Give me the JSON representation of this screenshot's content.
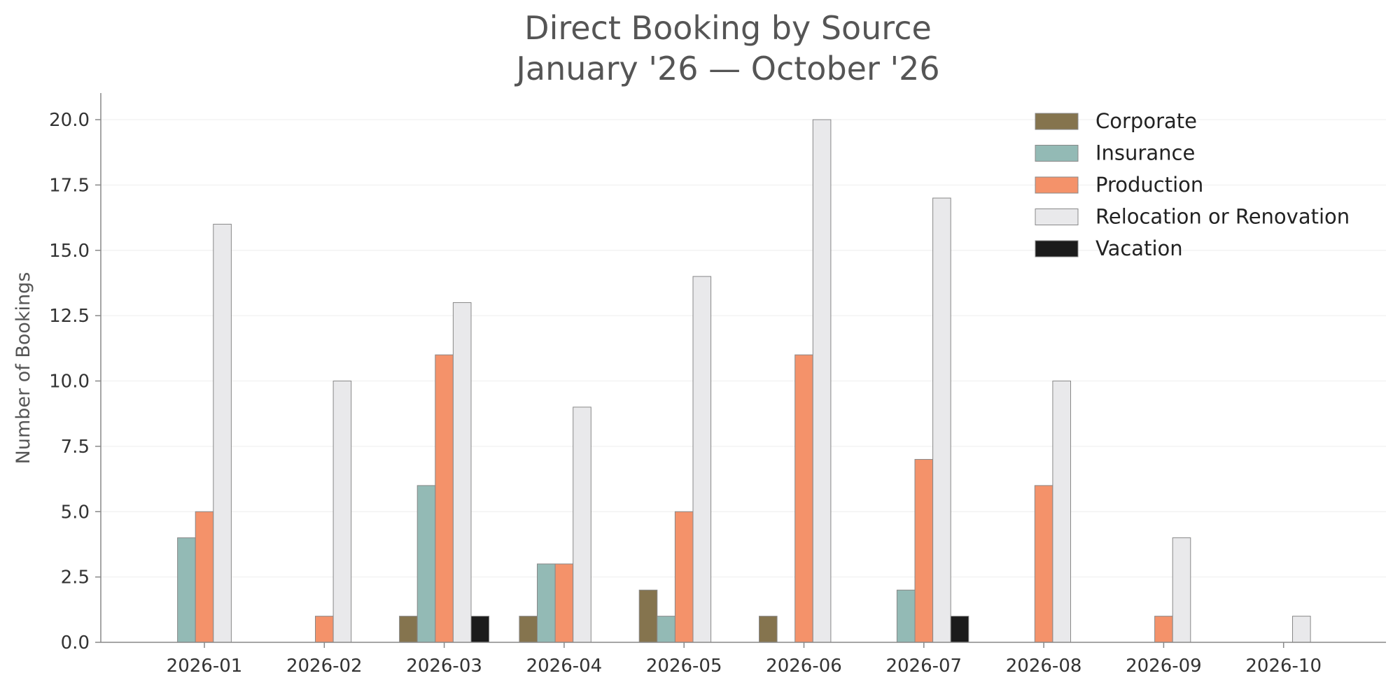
{
  "chart_data": {
    "type": "bar",
    "title": "Direct Booking by Source",
    "subtitle": "January '26 — October '26",
    "xlabel": "",
    "ylabel": "Number of Bookings",
    "ylim": [
      0,
      21
    ],
    "yticks": [
      "0.0",
      "2.5",
      "5.0",
      "7.5",
      "10.0",
      "12.5",
      "15.0",
      "17.5",
      "20.0"
    ],
    "grid": true,
    "legend_position": "top-right",
    "categories": [
      "2026-01",
      "2026-02",
      "2026-03",
      "2026-04",
      "2026-05",
      "2026-06",
      "2026-07",
      "2026-08",
      "2026-09",
      "2026-10"
    ],
    "series": [
      {
        "name": "Corporate",
        "color": "#85744e",
        "values": [
          0,
          0,
          1,
          1,
          2,
          1,
          0,
          0,
          0,
          0
        ]
      },
      {
        "name": "Insurance",
        "color": "#93bab5",
        "values": [
          4,
          0,
          6,
          3,
          1,
          0,
          2,
          0,
          0,
          0
        ]
      },
      {
        "name": "Production",
        "color": "#f4926a",
        "values": [
          5,
          1,
          11,
          3,
          5,
          11,
          7,
          6,
          1,
          0
        ]
      },
      {
        "name": "Relocation or Renovation",
        "color": "#e9e9eb",
        "values": [
          16,
          10,
          13,
          9,
          14,
          20,
          17,
          10,
          4,
          1
        ]
      },
      {
        "name": "Vacation",
        "color": "#1b1b1b",
        "values": [
          0,
          0,
          1,
          0,
          0,
          0,
          1,
          0,
          0,
          0
        ]
      }
    ]
  }
}
